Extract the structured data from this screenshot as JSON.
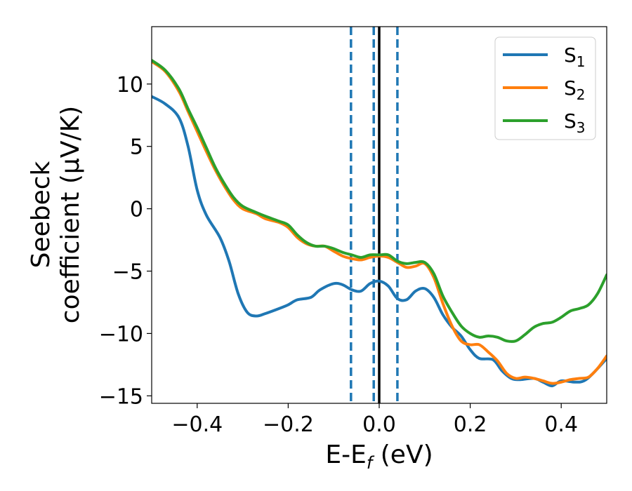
{
  "chart_data": {
    "type": "line",
    "xlabel": "E-E",
    "xlabel_sub": "f",
    "xlabel_unit": " (eV)",
    "ylabel_line1": "Seebeck",
    "ylabel_line2": "coefficient  (μV/K)",
    "xlim": [
      -0.5,
      0.5
    ],
    "ylim": [
      -15.6,
      14.6
    ],
    "xticks": [
      -0.4,
      -0.2,
      0.0,
      0.2,
      0.4
    ],
    "xtick_labels": [
      "−0.4",
      "−0.2",
      "0.0",
      "0.2",
      "0.4"
    ],
    "yticks": [
      10,
      5,
      0,
      -5,
      -10,
      -15
    ],
    "ytick_labels": [
      "10",
      "5",
      "0",
      "−5",
      "−10",
      "−15"
    ],
    "legend_position": "top-right",
    "series": [
      {
        "name": "S",
        "sub": "1",
        "color": "#1f77b4",
        "points": [
          [
            -0.5,
            9.0
          ],
          [
            -0.47,
            8.4
          ],
          [
            -0.44,
            7.3
          ],
          [
            -0.42,
            5.0
          ],
          [
            -0.4,
            1.5
          ],
          [
            -0.38,
            -0.5
          ],
          [
            -0.35,
            -2.3
          ],
          [
            -0.33,
            -4.2
          ],
          [
            -0.31,
            -6.8
          ],
          [
            -0.29,
            -8.3
          ],
          [
            -0.27,
            -8.6
          ],
          [
            -0.25,
            -8.4
          ],
          [
            -0.22,
            -8.0
          ],
          [
            -0.2,
            -7.7
          ],
          [
            -0.18,
            -7.3
          ],
          [
            -0.15,
            -7.1
          ],
          [
            -0.13,
            -6.5
          ],
          [
            -0.1,
            -6.0
          ],
          [
            -0.08,
            -6.1
          ],
          [
            -0.06,
            -6.5
          ],
          [
            -0.04,
            -6.6
          ],
          [
            -0.02,
            -6.0
          ],
          [
            0.0,
            -5.8
          ],
          [
            0.02,
            -6.2
          ],
          [
            0.04,
            -7.2
          ],
          [
            0.06,
            -7.3
          ],
          [
            0.08,
            -6.6
          ],
          [
            0.1,
            -6.4
          ],
          [
            0.12,
            -7.1
          ],
          [
            0.14,
            -8.5
          ],
          [
            0.16,
            -9.5
          ],
          [
            0.18,
            -10.2
          ],
          [
            0.2,
            -11.3
          ],
          [
            0.22,
            -12.0
          ],
          [
            0.25,
            -12.1
          ],
          [
            0.27,
            -13.0
          ],
          [
            0.29,
            -13.6
          ],
          [
            0.31,
            -13.7
          ],
          [
            0.34,
            -13.6
          ],
          [
            0.36,
            -13.9
          ],
          [
            0.38,
            -14.2
          ],
          [
            0.4,
            -13.8
          ],
          [
            0.43,
            -13.9
          ],
          [
            0.45,
            -13.8
          ],
          [
            0.47,
            -13.2
          ],
          [
            0.5,
            -12.0
          ]
        ]
      },
      {
        "name": "S",
        "sub": "2",
        "color": "#ff7f0e",
        "points": [
          [
            -0.5,
            11.8
          ],
          [
            -0.47,
            11.0
          ],
          [
            -0.44,
            9.4
          ],
          [
            -0.42,
            7.8
          ],
          [
            -0.4,
            6.2
          ],
          [
            -0.38,
            4.6
          ],
          [
            -0.36,
            3.1
          ],
          [
            -0.34,
            1.8
          ],
          [
            -0.32,
            0.7
          ],
          [
            -0.3,
            0.0
          ],
          [
            -0.27,
            -0.4
          ],
          [
            -0.25,
            -0.8
          ],
          [
            -0.22,
            -1.1
          ],
          [
            -0.2,
            -1.5
          ],
          [
            -0.18,
            -2.3
          ],
          [
            -0.16,
            -2.8
          ],
          [
            -0.14,
            -3.0
          ],
          [
            -0.12,
            -3.0
          ],
          [
            -0.1,
            -3.4
          ],
          [
            -0.08,
            -3.8
          ],
          [
            -0.06,
            -4.0
          ],
          [
            -0.04,
            -4.1
          ],
          [
            -0.02,
            -3.9
          ],
          [
            0.0,
            -3.8
          ],
          [
            0.02,
            -3.9
          ],
          [
            0.04,
            -4.3
          ],
          [
            0.06,
            -4.7
          ],
          [
            0.08,
            -4.6
          ],
          [
            0.1,
            -4.4
          ],
          [
            0.12,
            -5.5
          ],
          [
            0.14,
            -7.6
          ],
          [
            0.16,
            -9.4
          ],
          [
            0.18,
            -10.6
          ],
          [
            0.2,
            -10.9
          ],
          [
            0.22,
            -10.9
          ],
          [
            0.24,
            -11.5
          ],
          [
            0.26,
            -12.2
          ],
          [
            0.28,
            -13.2
          ],
          [
            0.3,
            -13.6
          ],
          [
            0.32,
            -13.5
          ],
          [
            0.34,
            -13.6
          ],
          [
            0.36,
            -13.8
          ],
          [
            0.38,
            -14.0
          ],
          [
            0.4,
            -13.9
          ],
          [
            0.42,
            -13.7
          ],
          [
            0.44,
            -13.6
          ],
          [
            0.46,
            -13.5
          ],
          [
            0.48,
            -12.8
          ],
          [
            0.5,
            -11.8
          ]
        ]
      },
      {
        "name": "S",
        "sub": "3",
        "color": "#2ca02c",
        "points": [
          [
            -0.5,
            11.9
          ],
          [
            -0.47,
            11.1
          ],
          [
            -0.44,
            9.6
          ],
          [
            -0.42,
            8.0
          ],
          [
            -0.4,
            6.5
          ],
          [
            -0.38,
            4.9
          ],
          [
            -0.36,
            3.3
          ],
          [
            -0.34,
            2.0
          ],
          [
            -0.32,
            0.9
          ],
          [
            -0.3,
            0.2
          ],
          [
            -0.27,
            -0.3
          ],
          [
            -0.25,
            -0.6
          ],
          [
            -0.22,
            -1.0
          ],
          [
            -0.2,
            -1.3
          ],
          [
            -0.18,
            -2.1
          ],
          [
            -0.16,
            -2.7
          ],
          [
            -0.14,
            -3.0
          ],
          [
            -0.12,
            -3.0
          ],
          [
            -0.1,
            -3.2
          ],
          [
            -0.08,
            -3.5
          ],
          [
            -0.06,
            -3.7
          ],
          [
            -0.04,
            -3.9
          ],
          [
            -0.02,
            -3.7
          ],
          [
            0.0,
            -3.7
          ],
          [
            0.02,
            -3.7
          ],
          [
            0.04,
            -4.2
          ],
          [
            0.06,
            -4.4
          ],
          [
            0.08,
            -4.3
          ],
          [
            0.1,
            -4.3
          ],
          [
            0.12,
            -5.2
          ],
          [
            0.14,
            -7.0
          ],
          [
            0.16,
            -8.3
          ],
          [
            0.18,
            -9.4
          ],
          [
            0.2,
            -10.0
          ],
          [
            0.22,
            -10.3
          ],
          [
            0.24,
            -10.2
          ],
          [
            0.26,
            -10.3
          ],
          [
            0.28,
            -10.6
          ],
          [
            0.3,
            -10.6
          ],
          [
            0.32,
            -10.1
          ],
          [
            0.34,
            -9.5
          ],
          [
            0.36,
            -9.2
          ],
          [
            0.38,
            -9.1
          ],
          [
            0.4,
            -8.7
          ],
          [
            0.42,
            -8.2
          ],
          [
            0.44,
            -8.0
          ],
          [
            0.46,
            -7.7
          ],
          [
            0.48,
            -6.8
          ],
          [
            0.5,
            -5.3
          ]
        ]
      }
    ],
    "vlines": [
      {
        "x": -0.062,
        "style": "dashed",
        "color": "#1f77b4"
      },
      {
        "x": -0.012,
        "style": "dashed",
        "color": "#1f77b4"
      },
      {
        "x": 0.0,
        "style": "solid",
        "color": "#000000"
      },
      {
        "x": 0.04,
        "style": "dashed",
        "color": "#1f77b4"
      }
    ]
  }
}
